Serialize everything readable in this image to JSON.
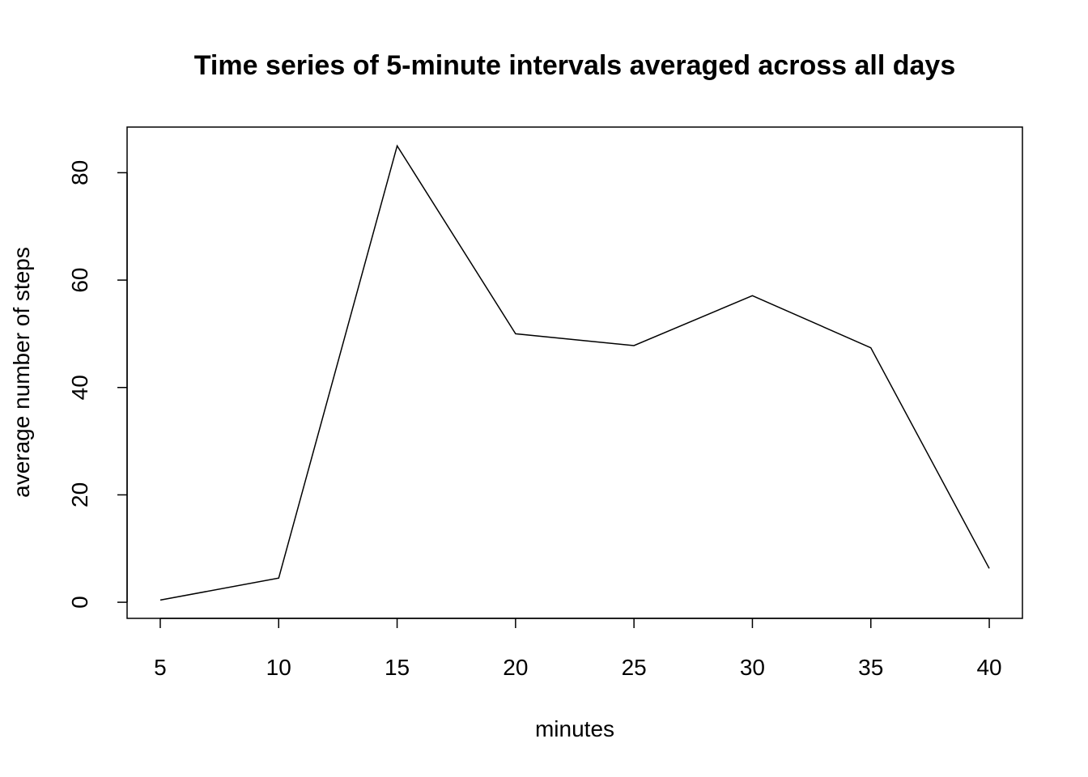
{
  "chart_data": {
    "type": "line",
    "title": "Time series of 5-minute intervals averaged across all days",
    "xlabel": "minutes",
    "ylabel": "average number of steps",
    "x": [
      5,
      10,
      15,
      20,
      25,
      30,
      35,
      40
    ],
    "series": [
      {
        "values": [
          0.4,
          4.5,
          85.0,
          50.0,
          47.8,
          57.1,
          47.4,
          6.3
        ]
      }
    ],
    "xticks": [
      5,
      10,
      15,
      20,
      25,
      30,
      35,
      40
    ],
    "yticks": [
      0,
      20,
      40,
      60,
      80
    ],
    "xlim": [
      3.6,
      41.4
    ],
    "ylim": [
      -3.0,
      88.5
    ],
    "grid": false,
    "legend": "none",
    "line_color": "#000000"
  }
}
